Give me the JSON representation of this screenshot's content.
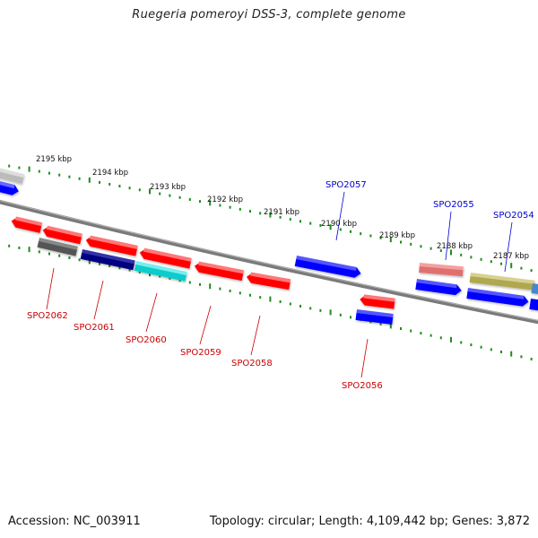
{
  "title": "Ruegeria pomeroyi DSS-3, complete genome",
  "footer": {
    "accession": "Accession: NC_003911",
    "summary": "Topology: circular; Length: 4,109,442 bp; Genes: 3,872"
  },
  "ruler": [
    "2195 kbp",
    "2194 kbp",
    "2193 kbp",
    "2192 kbp",
    "2191 kbp",
    "2190 kbp",
    "2189 kbp",
    "2188 kbp",
    "2187 kbp"
  ],
  "colors": {
    "backbone": "#7a7a7a",
    "tick": "#1e8c1e",
    "forward_label": "#0000cc",
    "reverse_label": "#cc0000",
    "red": "#ff0000",
    "blue": "#0000ff",
    "gray": "#555555",
    "navy": "#000080",
    "cyan": "#11cccc",
    "pink": "#e07070",
    "olive": "#b0a850",
    "light": "#bbbbbb"
  },
  "gene_labels": {
    "forward": [
      "SPO2057",
      "SPO2055",
      "SPO2054"
    ],
    "reverse": [
      "SPO2062",
      "SPO2061",
      "SPO2060",
      "SPO2059",
      "SPO2058",
      "SPO2056"
    ]
  }
}
